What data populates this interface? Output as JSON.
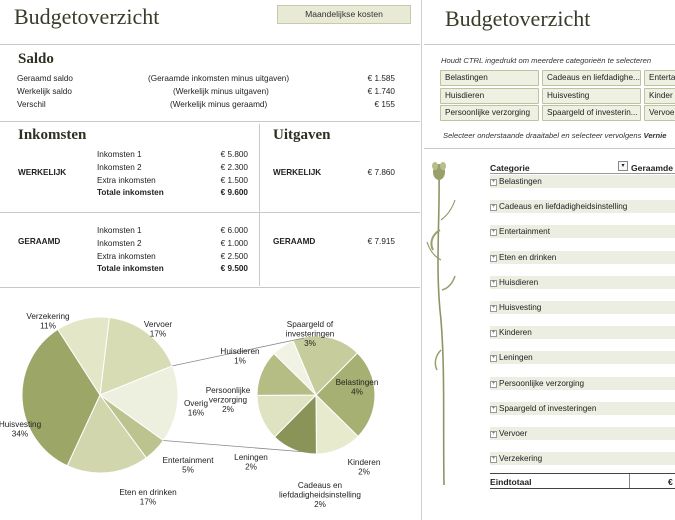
{
  "left": {
    "title": "Budgetoverzicht",
    "monthly_costs_button": "Maandelijkse kosten",
    "saldo": {
      "heading": "Saldo",
      "rows": [
        {
          "label": "Geraamd saldo",
          "formula": "(Geraamde inkomsten minus uitgaven)",
          "value": "€ 1.585"
        },
        {
          "label": "Werkelijk saldo",
          "formula": "(Werkelijk minus uitgaven)",
          "value": "€ 1.740"
        },
        {
          "label": "Verschil",
          "formula": "(Werkelijk minus geraamd)",
          "value": "€ 155"
        }
      ]
    },
    "inkomsten": {
      "heading": "Inkomsten",
      "werkelijk_label": "WERKELIJK",
      "werkelijk_rows": [
        {
          "label": "Inkomsten 1",
          "value": "€ 5.800"
        },
        {
          "label": "Inkomsten 2",
          "value": "€ 2.300"
        },
        {
          "label": "Extra inkomsten",
          "value": "€ 1.500"
        }
      ],
      "werkelijk_total_label": "Totale inkomsten",
      "werkelijk_total_value": "€ 9.600",
      "geraamd_label": "GERAAMD",
      "geraamd_rows": [
        {
          "label": "Inkomsten 1",
          "value": "€ 6.000"
        },
        {
          "label": "Inkomsten 2",
          "value": "€ 1.000"
        },
        {
          "label": "Extra inkomsten",
          "value": "€ 2.500"
        }
      ],
      "geraamd_total_label": "Totale inkomsten",
      "geraamd_total_value": "€ 9.500"
    },
    "uitgaven": {
      "heading": "Uitgaven",
      "werkelijk_label": "WERKELIJK",
      "werkelijk_value": "€ 7.860",
      "geraamd_label": "GERAAMD",
      "geraamd_value": "€ 7.915"
    }
  },
  "chart_data": {
    "type": "pie",
    "title": "",
    "main_slices": [
      {
        "name": "Vervoer",
        "pct": 17
      },
      {
        "name": "Overig",
        "pct": 16
      },
      {
        "name": "Entertainment",
        "pct": 5
      },
      {
        "name": "Eten en drinken",
        "pct": 17
      },
      {
        "name": "Huisvesting",
        "pct": 34
      },
      {
        "name": "Verzekering",
        "pct": 11
      }
    ],
    "secondary_slices": [
      {
        "name": "Spaargeld of investeringen",
        "pct": 3
      },
      {
        "name": "Belastingen",
        "pct": 4
      },
      {
        "name": "Kinderen",
        "pct": 2
      },
      {
        "name": "Cadeaus en liefdadigheidsinstelling",
        "pct": 2
      },
      {
        "name": "Leningen",
        "pct": 2
      },
      {
        "name": "Persoonlijke verzorging",
        "pct": 2
      },
      {
        "name": "Huisdieren",
        "pct": 1
      }
    ]
  },
  "right": {
    "title": "Budgetoverzicht",
    "hint": "Houdt CTRL ingedrukt om meerdere categorieën te selecteren",
    "slicer": [
      "Belastingen",
      "Cadeaus en liefdadighe...",
      "Entertai",
      "Huisdieren",
      "Huisvesting",
      "Kinder",
      "Persoonlijke verzorging",
      "Spaargeld of investerin...",
      "Vervoe"
    ],
    "instruction_prefix": "Selecteer onderstaande draaitabel en selecteer vervolgens ",
    "instruction_bold": "Vernie",
    "pivot": {
      "col_category": "Categorie",
      "col_geraamd": "Geraamde",
      "rows": [
        "Belastingen",
        "Cadeaus en liefdadigheidsinstelling",
        "Entertainment",
        "Eten en drinken",
        "Huisdieren",
        "Huisvesting",
        "Kinderen",
        "Leningen",
        "Persoonlijke verzorging",
        "Spaargeld of investeringen",
        "Vervoer",
        "Verzekering"
      ],
      "total_label": "Eindtotaal",
      "total_value": "€"
    }
  }
}
